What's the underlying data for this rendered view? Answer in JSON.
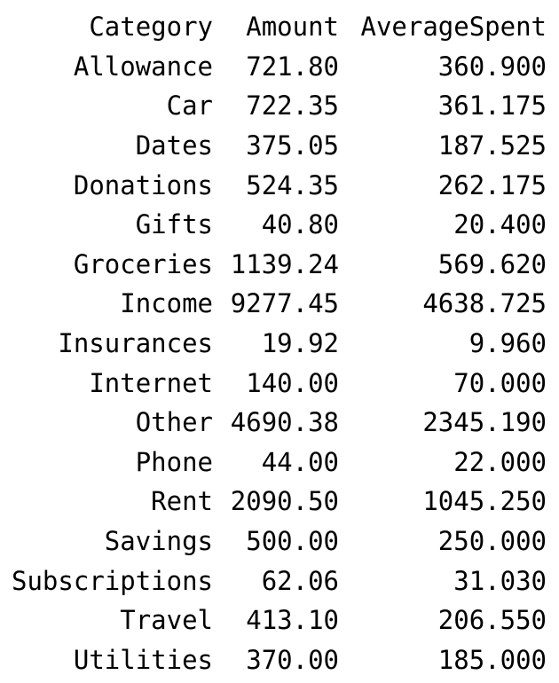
{
  "table": {
    "columns": [
      "Category",
      "Amount",
      "AverageSpent"
    ],
    "rows": [
      [
        "Allowance",
        "721.80",
        "360.900"
      ],
      [
        "Car",
        "722.35",
        "361.175"
      ],
      [
        "Dates",
        "375.05",
        "187.525"
      ],
      [
        "Donations",
        "524.35",
        "262.175"
      ],
      [
        "Gifts",
        "40.80",
        "20.400"
      ],
      [
        "Groceries",
        "1139.24",
        "569.620"
      ],
      [
        "Income",
        "9277.45",
        "4638.725"
      ],
      [
        "Insurances",
        "19.92",
        "9.960"
      ],
      [
        "Internet",
        "140.00",
        "70.000"
      ],
      [
        "Other",
        "4690.38",
        "2345.190"
      ],
      [
        "Phone",
        "44.00",
        "22.000"
      ],
      [
        "Rent",
        "2090.50",
        "1045.250"
      ],
      [
        "Savings",
        "500.00",
        "250.000"
      ],
      [
        "Subscriptions",
        "62.06",
        "31.030"
      ],
      [
        "Travel",
        "413.10",
        "206.550"
      ],
      [
        "Utilities",
        "370.00",
        "185.000"
      ]
    ]
  }
}
